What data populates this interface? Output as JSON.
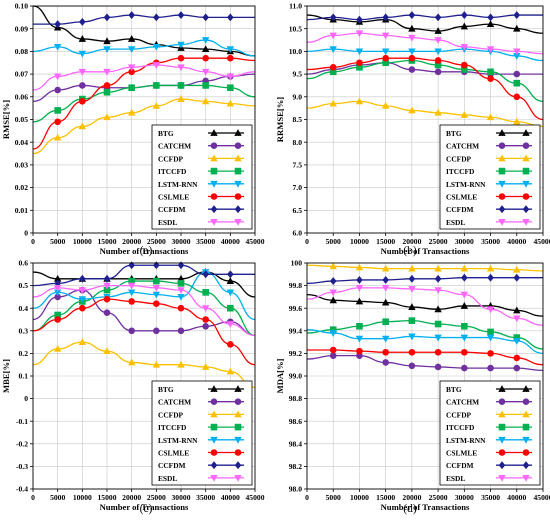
{
  "chart_data": [
    {
      "type": "line",
      "panel_label": "(a)",
      "xlabel": "Number of Transactions",
      "ylabel": "RMSE[%]",
      "xlim": [
        0,
        45000
      ],
      "ylim": [
        0,
        0.1
      ],
      "xticks": [
        "0",
        "5000",
        "10000",
        "15000",
        "20000",
        "25000",
        "30000",
        "35000",
        "40000",
        "45000"
      ],
      "yticks": [
        "0",
        "0.01",
        "0.02",
        "0.03",
        "0.04",
        "0.05",
        "0.06",
        "0.07",
        "0.08",
        "0.09",
        "0.10"
      ],
      "x": [
        0,
        5000,
        10000,
        15000,
        20000,
        25000,
        30000,
        35000,
        40000,
        45000
      ],
      "grid": true,
      "legend_position": "bottom-right",
      "series": [
        {
          "name": "BTG",
          "values": [
            0.1,
            0.0905,
            0.0855,
            0.0845,
            0.0855,
            0.083,
            0.0815,
            0.081,
            0.08,
            0.078
          ]
        },
        {
          "name": "CATCHM",
          "values": [
            0.058,
            0.063,
            0.065,
            0.064,
            0.064,
            0.065,
            0.065,
            0.067,
            0.069,
            0.07
          ]
        },
        {
          "name": "CCFDP",
          "values": [
            0.035,
            0.042,
            0.047,
            0.051,
            0.053,
            0.056,
            0.059,
            0.058,
            0.057,
            0.056
          ]
        },
        {
          "name": "ITCCFD",
          "values": [
            0.049,
            0.054,
            0.059,
            0.062,
            0.064,
            0.065,
            0.065,
            0.065,
            0.064,
            0.06
          ]
        },
        {
          "name": "LSTM-RNN",
          "values": [
            0.08,
            0.082,
            0.079,
            0.081,
            0.081,
            0.082,
            0.083,
            0.085,
            0.081,
            0.078
          ]
        },
        {
          "name": "CSLMLE",
          "values": [
            0.037,
            0.049,
            0.058,
            0.065,
            0.071,
            0.075,
            0.077,
            0.077,
            0.077,
            0.076
          ]
        },
        {
          "name": "CCFDM",
          "values": [
            0.092,
            0.092,
            0.093,
            0.095,
            0.096,
            0.095,
            0.096,
            0.095,
            0.095,
            0.095
          ]
        },
        {
          "name": "ESDL",
          "values": [
            0.063,
            0.069,
            0.071,
            0.071,
            0.073,
            0.074,
            0.073,
            0.071,
            0.069,
            0.071
          ]
        }
      ]
    },
    {
      "type": "line",
      "panel_label": "(b)",
      "xlabel": "Number of Transactions",
      "ylabel": "RRMSE[%]",
      "xlim": [
        0,
        45000
      ],
      "ylim": [
        6.0,
        11.0
      ],
      "xticks": [
        "0",
        "5000",
        "10000",
        "15000",
        "20000",
        "25000",
        "30000",
        "35000",
        "40000",
        "45000"
      ],
      "yticks": [
        "6.0",
        "6.5",
        "7.0",
        "7.5",
        "8.0",
        "8.5",
        "9.0",
        "9.5",
        "10.0",
        "10.5",
        "11.0"
      ],
      "x": [
        0,
        5000,
        10000,
        15000,
        20000,
        25000,
        30000,
        35000,
        40000,
        45000
      ],
      "grid": true,
      "legend_position": "bottom-right",
      "series": [
        {
          "name": "BTG",
          "values": [
            10.8,
            10.7,
            10.65,
            10.7,
            10.5,
            10.45,
            10.55,
            10.6,
            10.5,
            10.4
          ]
        },
        {
          "name": "CATCHM",
          "values": [
            9.5,
            9.6,
            9.7,
            9.75,
            9.6,
            9.55,
            9.55,
            9.5,
            9.5,
            9.5
          ]
        },
        {
          "name": "CCFDP",
          "values": [
            8.75,
            8.85,
            8.9,
            8.8,
            8.7,
            8.65,
            8.6,
            8.55,
            8.45,
            8.35
          ]
        },
        {
          "name": "ITCCFD",
          "values": [
            9.4,
            9.55,
            9.65,
            9.75,
            9.8,
            9.7,
            9.6,
            9.55,
            9.3,
            8.9
          ]
        },
        {
          "name": "LSTM-RNN",
          "values": [
            10.0,
            10.05,
            10.0,
            10.0,
            10.0,
            10.0,
            10.05,
            10.0,
            9.9,
            9.8
          ]
        },
        {
          "name": "CSLMLE",
          "values": [
            9.6,
            9.65,
            9.75,
            9.85,
            9.85,
            9.8,
            9.7,
            9.4,
            9.0,
            8.5
          ]
        },
        {
          "name": "CCFDM",
          "values": [
            10.7,
            10.75,
            10.7,
            10.75,
            10.8,
            10.75,
            10.8,
            10.75,
            10.8,
            10.8
          ]
        },
        {
          "name": "ESDL",
          "values": [
            10.2,
            10.35,
            10.4,
            10.35,
            10.3,
            10.25,
            10.1,
            10.05,
            10.0,
            9.95
          ]
        }
      ]
    },
    {
      "type": "line",
      "panel_label": "(c)",
      "xlabel": "Number of Transactions",
      "ylabel": "MBE[%]",
      "xlim": [
        0,
        45000
      ],
      "ylim": [
        -0.4,
        0.6
      ],
      "xticks": [
        "0",
        "5000",
        "10000",
        "15000",
        "20000",
        "25000",
        "30000",
        "35000",
        "40000",
        "45000"
      ],
      "yticks": [
        "-0.4",
        "-0.3",
        "-0.2",
        "-0.1",
        "0",
        "0.1",
        "0.2",
        "0.3",
        "0.4",
        "0.5",
        "0.6"
      ],
      "x": [
        0,
        5000,
        10000,
        15000,
        20000,
        25000,
        30000,
        35000,
        40000,
        45000
      ],
      "grid": true,
      "legend_position": "bottom-right",
      "series": [
        {
          "name": "BTG",
          "values": [
            0.56,
            0.53,
            0.53,
            0.53,
            0.53,
            0.53,
            0.53,
            0.56,
            0.52,
            0.45
          ]
        },
        {
          "name": "CATCHM",
          "values": [
            0.35,
            0.45,
            0.48,
            0.38,
            0.3,
            0.3,
            0.3,
            0.32,
            0.34,
            0.28
          ]
        },
        {
          "name": "CCFDP",
          "values": [
            0.15,
            0.22,
            0.25,
            0.21,
            0.16,
            0.15,
            0.15,
            0.14,
            0.12,
            0.05
          ]
        },
        {
          "name": "ITCCFD",
          "values": [
            0.3,
            0.37,
            0.43,
            0.48,
            0.52,
            0.52,
            0.51,
            0.47,
            0.4,
            0.28
          ]
        },
        {
          "name": "LSTM-RNN",
          "values": [
            0.4,
            0.47,
            0.44,
            0.45,
            0.47,
            0.46,
            0.45,
            0.56,
            0.47,
            0.35
          ]
        },
        {
          "name": "CSLMLE",
          "values": [
            0.3,
            0.35,
            0.4,
            0.44,
            0.43,
            0.42,
            0.4,
            0.35,
            0.24,
            0.15
          ]
        },
        {
          "name": "CCFDM",
          "values": [
            0.5,
            0.51,
            0.53,
            0.53,
            0.59,
            0.59,
            0.59,
            0.55,
            0.55,
            0.55
          ]
        },
        {
          "name": "ESDL",
          "values": [
            0.45,
            0.49,
            0.48,
            0.5,
            0.5,
            0.49,
            0.48,
            0.4,
            0.33,
            0.28
          ]
        }
      ]
    },
    {
      "type": "line",
      "panel_label": "(d)",
      "xlabel": "Number of Transactions",
      "ylabel": "MDA[%]",
      "xlim": [
        0,
        45000
      ],
      "ylim": [
        98.0,
        100.0
      ],
      "xticks": [
        "0",
        "5000",
        "10000",
        "15000",
        "20000",
        "25000",
        "30000",
        "35000",
        "40000",
        "45000"
      ],
      "yticks": [
        "98.0",
        "98.2",
        "98.4",
        "98.6",
        "98.8",
        "99.0",
        "99.2",
        "99.4",
        "99.6",
        "99.8",
        "100"
      ],
      "x": [
        0,
        5000,
        10000,
        15000,
        20000,
        25000,
        30000,
        35000,
        40000,
        45000
      ],
      "grid": true,
      "legend_position": "bottom-right",
      "series": [
        {
          "name": "BTG",
          "values": [
            99.72,
            99.67,
            99.66,
            99.65,
            99.61,
            99.59,
            99.62,
            99.62,
            99.58,
            99.53
          ]
        },
        {
          "name": "CATCHM",
          "values": [
            99.15,
            99.18,
            99.18,
            99.12,
            99.09,
            99.08,
            99.07,
            99.07,
            99.07,
            99.05
          ]
        },
        {
          "name": "CCFDP",
          "values": [
            99.98,
            99.97,
            99.96,
            99.95,
            99.95,
            99.95,
            99.95,
            99.95,
            99.94,
            99.93
          ]
        },
        {
          "name": "ITCCFD",
          "values": [
            99.38,
            99.41,
            99.44,
            99.48,
            99.49,
            99.46,
            99.44,
            99.39,
            99.34,
            99.24
          ]
        },
        {
          "name": "LSTM-RNN",
          "values": [
            99.41,
            99.38,
            99.33,
            99.33,
            99.35,
            99.34,
            99.34,
            99.34,
            99.31,
            99.2
          ]
        },
        {
          "name": "CSLMLE",
          "values": [
            99.23,
            99.23,
            99.22,
            99.21,
            99.21,
            99.21,
            99.21,
            99.2,
            99.16,
            99.1
          ]
        },
        {
          "name": "CCFDM",
          "values": [
            99.82,
            99.84,
            99.85,
            99.85,
            99.86,
            99.86,
            99.87,
            99.87,
            99.87,
            99.87
          ]
        },
        {
          "name": "ESDL",
          "values": [
            99.68,
            99.74,
            99.78,
            99.78,
            99.77,
            99.76,
            99.72,
            99.59,
            99.51,
            99.45
          ]
        }
      ]
    }
  ],
  "styles": [
    {
      "name": "BTG",
      "color": "#000000",
      "marker": "triangle-up"
    },
    {
      "name": "CATCHM",
      "color": "#7030a0",
      "marker": "circle"
    },
    {
      "name": "CCFDP",
      "color": "#ffc000",
      "marker": "triangle-up"
    },
    {
      "name": "ITCCFD",
      "color": "#00b050",
      "marker": "square"
    },
    {
      "name": "LSTM-RNN",
      "color": "#00b0f0",
      "marker": "triangle-down"
    },
    {
      "name": "CSLMLE",
      "color": "#ff0000",
      "marker": "circle"
    },
    {
      "name": "CCFDM",
      "color": "#1f1f8f",
      "marker": "diamond"
    },
    {
      "name": "ESDL",
      "color": "#ff66ff",
      "marker": "triangle-down"
    }
  ]
}
